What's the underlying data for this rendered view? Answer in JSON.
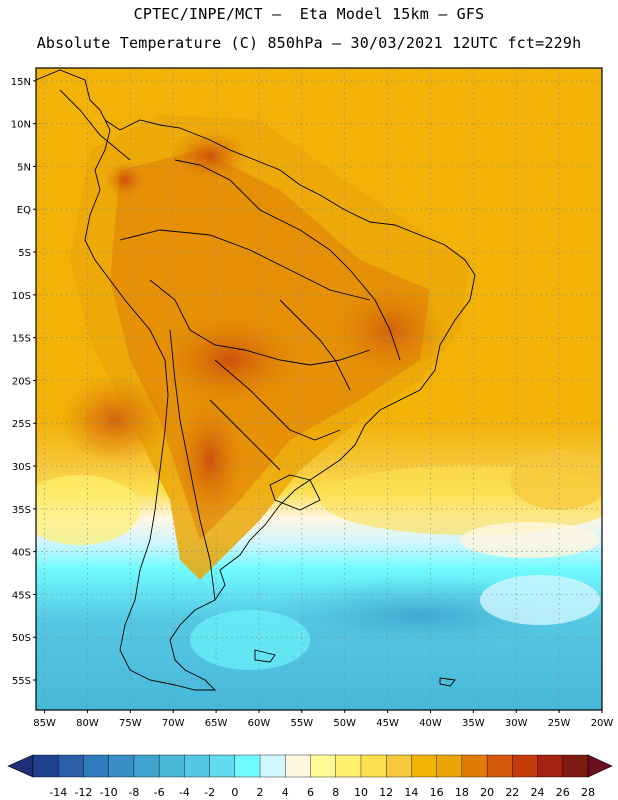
{
  "header": {
    "line1": "CPTEC/INPE/MCT –  Eta Model 15km – GFS",
    "line2": "Absolute Temperature (C) 850hPa – 30/03/2021 12UTC fct=229h"
  },
  "map": {
    "lat_labels": [
      "15N",
      "10N",
      "5N",
      "EQ",
      "5S",
      "10S",
      "15S",
      "20S",
      "25S",
      "30S",
      "35S",
      "40S",
      "45S",
      "50S",
      "55S"
    ],
    "lon_labels": [
      "85W",
      "80W",
      "75W",
      "70W",
      "65W",
      "60W",
      "55W",
      "50W",
      "45W",
      "40W",
      "35W",
      "30W",
      "25W",
      "20W"
    ],
    "lat_values": [
      15,
      10,
      5,
      0,
      -5,
      -10,
      -15,
      -20,
      -25,
      -30,
      -35,
      -40,
      -45,
      -50,
      -55
    ],
    "lon_values": [
      -85,
      -80,
      -75,
      -70,
      -65,
      -60,
      -55,
      -50,
      -45,
      -40,
      -35,
      -30,
      -25,
      -20
    ],
    "lat_range": [
      -58.5,
      16.5
    ],
    "lon_range": [
      -86,
      -20
    ],
    "variable": "Absolute Temperature",
    "units": "C",
    "level": "850hPa"
  },
  "colorbar": {
    "labels": [
      "-14",
      "-12",
      "-10",
      "-8",
      "-6",
      "-4",
      "-2",
      "0",
      "2",
      "4",
      "6",
      "8",
      "10",
      "12",
      "14",
      "16",
      "18",
      "20",
      "22",
      "24",
      "26",
      "28"
    ],
    "colors": [
      "#1f3f8f",
      "#2a5fa8",
      "#2f7bbd",
      "#3b8fc6",
      "#3fa5cf",
      "#48b8d9",
      "#55c8e3",
      "#62dcef",
      "#70fbff",
      "#d0f6ff",
      "#fff6e0",
      "#fffb97",
      "#fff070",
      "#fbe050",
      "#f6c83c",
      "#f2b208",
      "#eba707",
      "#e07b06",
      "#d45a0a",
      "#c53c0a",
      "#a3230e",
      "#7d1a12"
    ]
  }
}
